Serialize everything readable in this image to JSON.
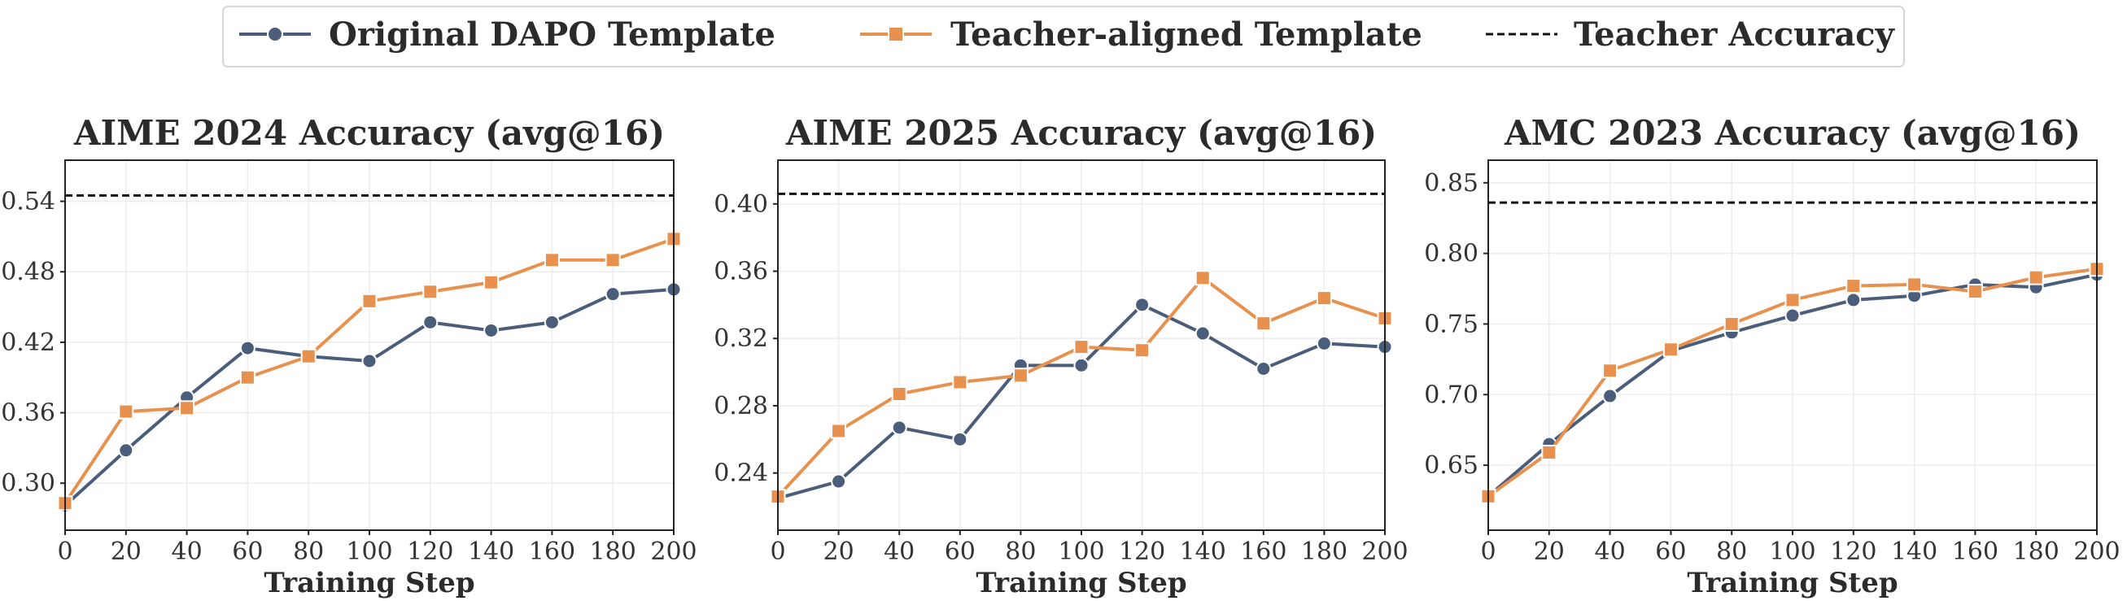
{
  "colors": {
    "original": "#4a5d7a",
    "teacher_aligned": "#e8914e",
    "teacher_acc": "#111111"
  },
  "legend": {
    "original_label": "Original DAPO Template",
    "aligned_label": "Teacher-aligned Template",
    "teacher_label": "Teacher Accuracy"
  },
  "chart_data": [
    {
      "type": "line",
      "title": "AIME 2024 Accuracy (avg@16)",
      "xlabel": "Training Step",
      "ylabel": "",
      "x": [
        0,
        20,
        40,
        60,
        80,
        100,
        120,
        140,
        160,
        180,
        200
      ],
      "xticks": [
        0,
        20,
        40,
        60,
        80,
        100,
        120,
        140,
        160,
        180,
        200
      ],
      "yticks": [
        0.3,
        0.36,
        0.42,
        0.48,
        0.54
      ],
      "ytick_labels": [
        "0.30",
        "0.36",
        "0.42",
        "0.48",
        "0.54"
      ],
      "xlim": [
        0,
        200
      ],
      "ylim": [
        0.26,
        0.575
      ],
      "series": [
        {
          "name": "Original DAPO Template",
          "marker": "circle",
          "values": [
            0.281,
            0.328,
            0.373,
            0.415,
            0.408,
            0.404,
            0.437,
            0.43,
            0.437,
            0.461,
            0.465
          ]
        },
        {
          "name": "Teacher-aligned Template",
          "marker": "square",
          "values": [
            0.283,
            0.361,
            0.364,
            0.39,
            0.408,
            0.455,
            0.463,
            0.471,
            0.49,
            0.49,
            0.508
          ]
        }
      ],
      "teacher_accuracy": 0.545
    },
    {
      "type": "line",
      "title": "AIME 2025 Accuracy (avg@16)",
      "xlabel": "Training Step",
      "ylabel": "",
      "x": [
        0,
        20,
        40,
        60,
        80,
        100,
        120,
        140,
        160,
        180,
        200
      ],
      "xticks": [
        0,
        20,
        40,
        60,
        80,
        100,
        120,
        140,
        160,
        180,
        200
      ],
      "yticks": [
        0.24,
        0.28,
        0.32,
        0.36,
        0.4
      ],
      "ytick_labels": [
        "0.24",
        "0.28",
        "0.32",
        "0.36",
        "0.40"
      ],
      "xlim": [
        0,
        200
      ],
      "ylim": [
        0.206,
        0.426
      ],
      "series": [
        {
          "name": "Original DAPO Template",
          "marker": "circle",
          "values": [
            0.225,
            0.235,
            0.267,
            0.26,
            0.304,
            0.304,
            0.34,
            0.323,
            0.302,
            0.317,
            0.315
          ]
        },
        {
          "name": "Teacher-aligned Template",
          "marker": "square",
          "values": [
            0.226,
            0.265,
            0.287,
            0.294,
            0.298,
            0.315,
            0.313,
            0.356,
            0.329,
            0.344,
            0.332
          ]
        }
      ],
      "teacher_accuracy": 0.406
    },
    {
      "type": "line",
      "title": "AMC 2023 Accuracy (avg@16)",
      "xlabel": "Training Step",
      "ylabel": "",
      "x": [
        0,
        20,
        40,
        60,
        80,
        100,
        120,
        140,
        160,
        180,
        200
      ],
      "xticks": [
        0,
        20,
        40,
        60,
        80,
        100,
        120,
        140,
        160,
        180,
        200
      ],
      "yticks": [
        0.65,
        0.7,
        0.75,
        0.8,
        0.85
      ],
      "ytick_labels": [
        "0.65",
        "0.70",
        "0.75",
        "0.80",
        "0.85"
      ],
      "xlim": [
        0,
        200
      ],
      "ylim": [
        0.604,
        0.866
      ],
      "series": [
        {
          "name": "Original DAPO Template",
          "marker": "circle",
          "values": [
            0.628,
            0.665,
            0.699,
            0.731,
            0.744,
            0.756,
            0.767,
            0.77,
            0.778,
            0.776,
            0.785
          ]
        },
        {
          "name": "Teacher-aligned Template",
          "marker": "square",
          "values": [
            0.628,
            0.659,
            0.717,
            0.732,
            0.75,
            0.767,
            0.777,
            0.778,
            0.773,
            0.783,
            0.789
          ]
        }
      ],
      "teacher_accuracy": 0.836
    }
  ]
}
